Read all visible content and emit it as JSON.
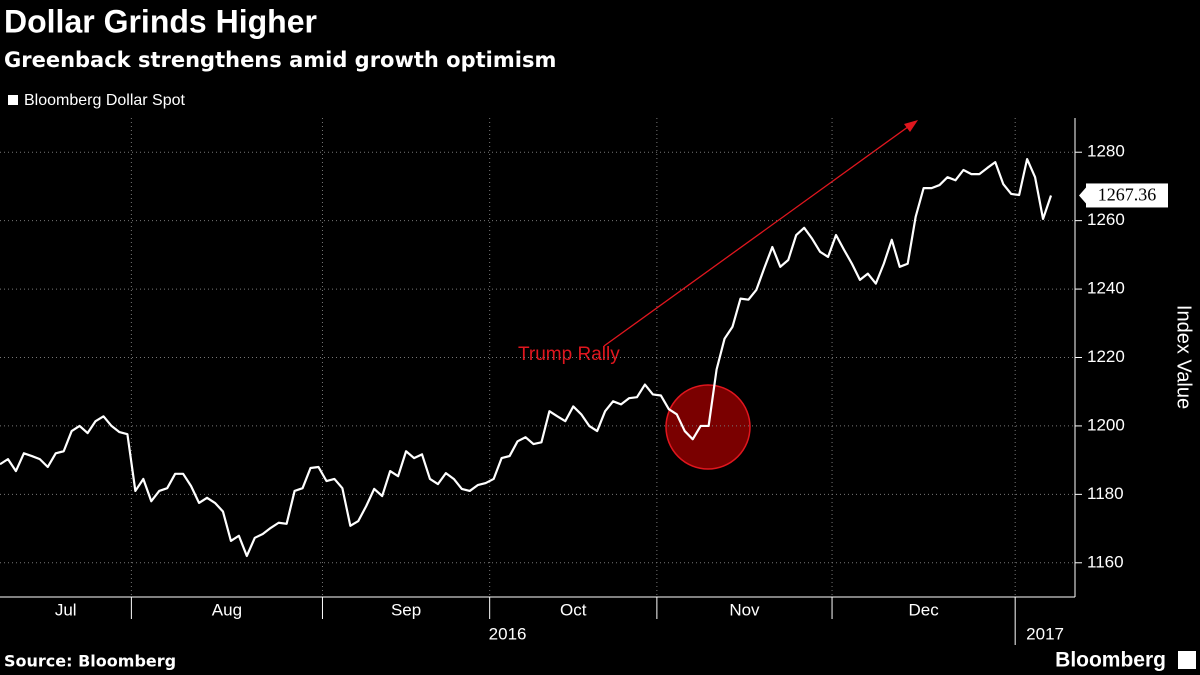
{
  "chart_data": {
    "type": "line",
    "title": "Dollar Grinds Higher",
    "subtitle": "Greenback strengthens amid growth optimism",
    "y_label": "Index Value",
    "source": "Source: Bloomberg",
    "brand": "Bloomberg",
    "annotation": {
      "text": "Trump Rally",
      "color": "#e0161e"
    },
    "categories": [
      "Jul",
      null,
      null,
      null,
      null,
      null,
      null,
      null,
      null,
      null,
      null,
      null,
      null,
      null,
      null,
      null,
      null,
      "Aug",
      null,
      null,
      null,
      null,
      null,
      null,
      null,
      null,
      null,
      null,
      null,
      null,
      null,
      null,
      null,
      null,
      null,
      null,
      null,
      null,
      null,
      null,
      null,
      "Sep",
      null,
      null,
      null,
      null,
      null,
      null,
      null,
      null,
      null,
      null,
      null,
      null,
      null,
      null,
      null,
      null,
      null,
      null,
      null,
      null,
      "Oct",
      null,
      null,
      null,
      null,
      null,
      null,
      null,
      null,
      null,
      null,
      null,
      null,
      null,
      null,
      null,
      null,
      null,
      null,
      null,
      null,
      "Nov",
      null,
      null,
      null,
      null,
      null,
      null,
      null,
      null,
      null,
      null,
      null,
      null,
      null,
      null,
      null,
      null,
      null,
      null,
      null,
      null,
      null,
      "Dec",
      null,
      null,
      null,
      null,
      null,
      null,
      null,
      null,
      null,
      null,
      null,
      null,
      null,
      null,
      null,
      null,
      null,
      null,
      null,
      null,
      null,
      null,
      null,
      null,
      null,
      null,
      null
    ],
    "year_categories": [
      "2016",
      null,
      null,
      null,
      null,
      null,
      null,
      null,
      null,
      null,
      null,
      null,
      null,
      null,
      null,
      null,
      null,
      null,
      null,
      null,
      null,
      null,
      null,
      null,
      null,
      null,
      null,
      null,
      null,
      null,
      null,
      null,
      null,
      null,
      null,
      null,
      null,
      null,
      null,
      null,
      null,
      null,
      null,
      null,
      null,
      null,
      null,
      null,
      null,
      null,
      null,
      null,
      null,
      null,
      null,
      null,
      null,
      null,
      null,
      null,
      null,
      null,
      null,
      null,
      null,
      null,
      null,
      null,
      null,
      null,
      null,
      null,
      null,
      null,
      null,
      null,
      null,
      null,
      null,
      null,
      null,
      null,
      null,
      null,
      null,
      null,
      null,
      null,
      null,
      null,
      null,
      null,
      null,
      null,
      null,
      null,
      null,
      null,
      null,
      null,
      null,
      null,
      null,
      null,
      null,
      null,
      null,
      null,
      null,
      null,
      null,
      null,
      null,
      null,
      null,
      null,
      null,
      null,
      null,
      null,
      null,
      null,
      null,
      null,
      null,
      null,
      null,
      null,
      "2017",
      null,
      null,
      null,
      null
    ],
    "series": [
      {
        "name": "Bloomberg Dollar Spot",
        "color": "#ffffff",
        "values": [
          1188.8,
          1190.3,
          1186.8,
          1192,
          1191.2,
          1190.3,
          1188,
          1192,
          1192.6,
          1198.5,
          1200,
          1197.9,
          1201.4,
          1202.8,
          1200,
          1198.2,
          1197.6,
          1181,
          1184.5,
          1178,
          1181,
          1181.8,
          1186,
          1186,
          1182.4,
          1177.5,
          1179,
          1177.5,
          1175,
          1166.4,
          1167.9,
          1162,
          1167.3,
          1168.4,
          1170.2,
          1171.7,
          1171.4,
          1181,
          1181.8,
          1187.7,
          1188,
          1183.9,
          1184.5,
          1181.8,
          1170.8,
          1172.2,
          1176.6,
          1181.6,
          1179.5,
          1186.8,
          1185.3,
          1192.6,
          1190.6,
          1191.7,
          1184.5,
          1183,
          1186.2,
          1184.5,
          1181.6,
          1181,
          1182.7,
          1183.3,
          1184.5,
          1190.6,
          1191.2,
          1195.5,
          1196.7,
          1194.7,
          1195.2,
          1204.3,
          1202.8,
          1201.4,
          1205.7,
          1203.4,
          1200,
          1198.5,
          1204.3,
          1207.2,
          1206.3,
          1208.1,
          1208.4,
          1212.1,
          1209.2,
          1208.9,
          1204.9,
          1203.4,
          1198.5,
          1196.1,
          1200,
          1200,
          1216.5,
          1225.5,
          1229,
          1237.2,
          1236.9,
          1239.8,
          1246.2,
          1252.3,
          1246.5,
          1248.5,
          1255.8,
          1257.9,
          1254.7,
          1250.9,
          1249.4,
          1255.8,
          1251.5,
          1247.4,
          1242.7,
          1244.5,
          1241.6,
          1247.4,
          1254.4,
          1246.5,
          1247.4,
          1261.1,
          1269.5,
          1269.5,
          1270.4,
          1272.7,
          1271.8,
          1274.8,
          1273.6,
          1273.6,
          1275.4,
          1277.1,
          1270.7,
          1267.8,
          1267.5,
          1278,
          1272.7,
          1260.5,
          1267.36
        ]
      }
    ],
    "ylim": [
      1150,
      1290
    ],
    "yticks": [
      1160,
      1180,
      1200,
      1220,
      1240,
      1260,
      1280
    ],
    "grid": true,
    "legend": "top-left"
  }
}
